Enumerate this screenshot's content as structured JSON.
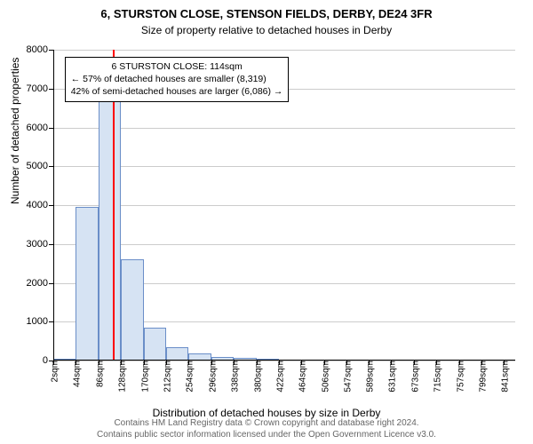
{
  "title": "6, STURSTON CLOSE, STENSON FIELDS, DERBY, DE24 3FR",
  "subtitle": "Size of property relative to detached houses in Derby",
  "y_axis_label": "Number of detached properties",
  "x_axis_label": "Distribution of detached houses by size in Derby",
  "footer_line1": "Contains HM Land Registry data © Crown copyright and database right 2024.",
  "footer_line2": "Contains public sector information licensed under the Open Government Licence v3.0.",
  "chart": {
    "type": "histogram",
    "background_color": "#ffffff",
    "grid_color": "#cccccc",
    "axis_color": "#000000",
    "bar_fill": "#d6e3f3",
    "bar_stroke": "#6a8ec8",
    "marker_line_color": "#ff0000",
    "ylim": [
      0,
      8000
    ],
    "y_ticks": [
      0,
      1000,
      2000,
      3000,
      4000,
      5000,
      6000,
      7000,
      8000
    ],
    "x_min": 2,
    "x_max": 862,
    "x_ticks": [
      2,
      44,
      86,
      128,
      170,
      212,
      254,
      296,
      338,
      380,
      422,
      464,
      506,
      547,
      589,
      631,
      673,
      715,
      757,
      799,
      841
    ],
    "x_tick_suffix": "sqm",
    "bin_edges": [
      2,
      44,
      86,
      128,
      170,
      212,
      254,
      296,
      338,
      380,
      422,
      464,
      506,
      547,
      589,
      631,
      673,
      715,
      757,
      799,
      841,
      862
    ],
    "values": [
      50,
      3950,
      6750,
      2600,
      850,
      350,
      180,
      100,
      80,
      50,
      30,
      20,
      15,
      10,
      8,
      5,
      5,
      3,
      2,
      2,
      1
    ],
    "marker_value": 114,
    "label_fontsize": 12,
    "tick_fontsize": 11
  },
  "annotation": {
    "line1": "6 STURSTON CLOSE: 114sqm",
    "line2": "← 57% of detached houses are smaller (8,319)",
    "line3": "42% of semi-detached houses are larger (6,086) →"
  }
}
